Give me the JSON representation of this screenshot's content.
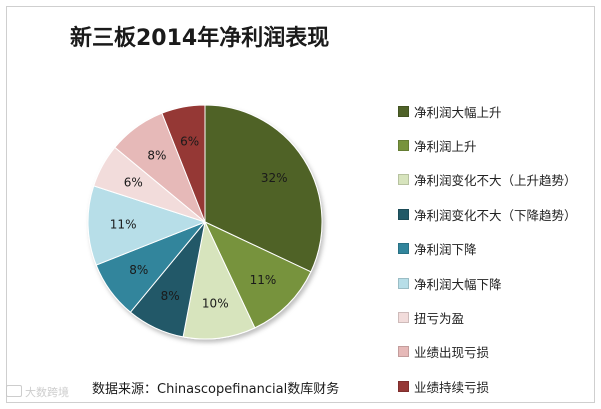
{
  "chart_data": {
    "type": "pie",
    "title": "新三板2014年净利润表现",
    "series": [
      {
        "name": "净利润大幅上升",
        "value": 32,
        "label": "32%",
        "color": "#4f6228"
      },
      {
        "name": "净利润上升",
        "value": 11,
        "label": "11%",
        "color": "#77933c"
      },
      {
        "name": "净利润变化不大（上升趋势）",
        "value": 10,
        "label": "10%",
        "color": "#d7e4bd"
      },
      {
        "name": "净利润变化不大（下降趋势）",
        "value": 8,
        "label": "8%",
        "color": "#215967"
      },
      {
        "name": "净利润下降",
        "value": 8,
        "label": "8%",
        "color": "#31859c"
      },
      {
        "name": "净利润大幅下降",
        "value": 11,
        "label": "11%",
        "color": "#b7dee8"
      },
      {
        "name": "扭亏为盈",
        "value": 6,
        "label": "6%",
        "color": "#f2dcdb"
      },
      {
        "name": "业绩出现亏损",
        "value": 8,
        "label": "8%",
        "color": "#e6b9b8"
      },
      {
        "name": "业绩持续亏损",
        "value": 6,
        "label": "6%",
        "color": "#953735"
      }
    ],
    "legend_position": "right",
    "start": "12 o'clock, clockwise"
  },
  "source_note": "数据来源：Chinascopefinancial数库财务",
  "watermark": "大数跨境"
}
